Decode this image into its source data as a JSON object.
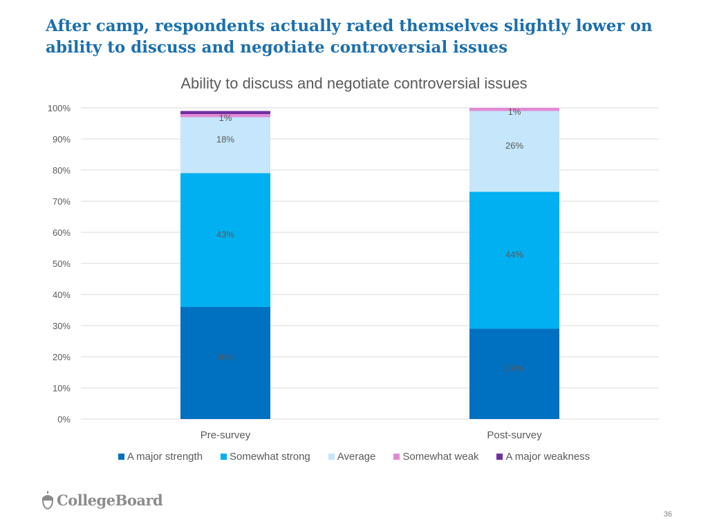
{
  "slide": {
    "title": "After camp, respondents actually rated themselves slightly lower on ability to discuss and negotiate controversial issues",
    "page_number": "36",
    "logo_text": "CollegeBoard"
  },
  "chart_data": {
    "type": "bar",
    "stacked": true,
    "title": "Ability to discuss and negotiate controversial issues",
    "categories": [
      "Pre-survey",
      "Post-survey"
    ],
    "ylim": [
      0,
      100
    ],
    "yticks": [
      "0%",
      "10%",
      "20%",
      "30%",
      "40%",
      "50%",
      "60%",
      "70%",
      "80%",
      "90%",
      "100%"
    ],
    "grid": true,
    "legend_position": "bottom",
    "series": [
      {
        "name": "A major strength",
        "color": "#0070c0",
        "values": [
          36,
          29
        ],
        "labels": [
          "36%",
          "29%"
        ]
      },
      {
        "name": "Somewhat strong",
        "color": "#00b0f0",
        "values": [
          43,
          44
        ],
        "labels": [
          "43%",
          "44%"
        ]
      },
      {
        "name": "Average",
        "color": "#c5e6fb",
        "values": [
          18,
          26
        ],
        "labels": [
          "18%",
          "26%"
        ]
      },
      {
        "name": "Somewhat weak",
        "color": "#e38ad6",
        "values": [
          1,
          1
        ],
        "labels": [
          "1%",
          "1%"
        ]
      },
      {
        "name": "A major weakness",
        "color": "#7030a0",
        "values": [
          1,
          0
        ],
        "labels": [
          "",
          ""
        ]
      }
    ]
  }
}
